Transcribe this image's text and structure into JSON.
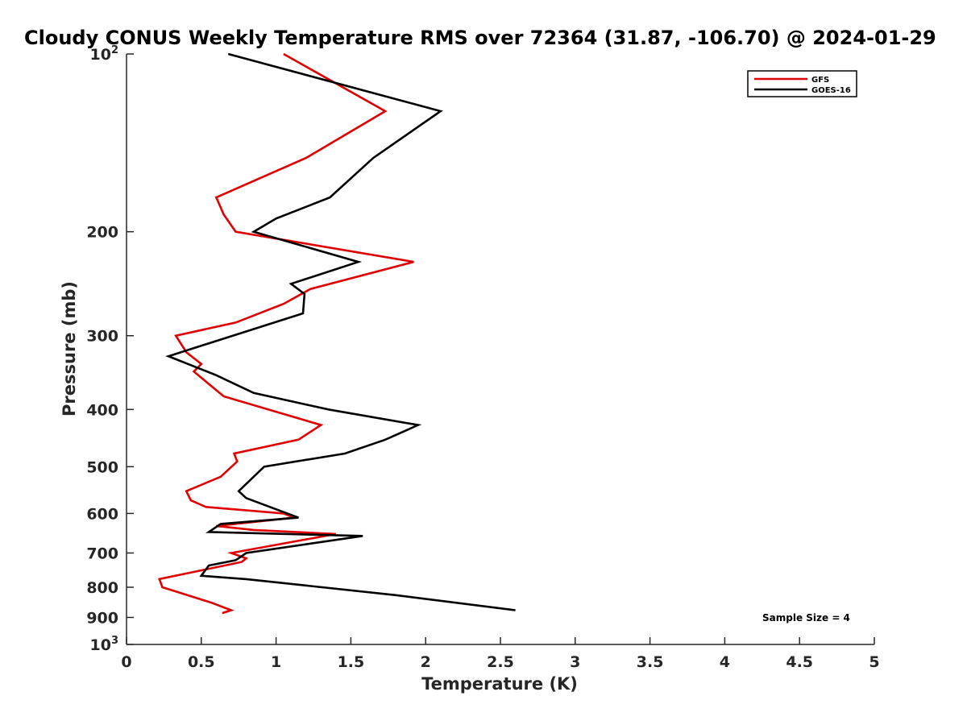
{
  "chart_data": {
    "type": "line",
    "title": "Cloudy CONUS Weekly Temperature RMS over 72364 (31.87, -106.70) @ 2024-01-29",
    "xlabel": "Temperature (K)",
    "ylabel": "Pressure (mb)",
    "xlim": [
      0,
      5
    ],
    "ylim": [
      100,
      1000
    ],
    "y_scale": "log",
    "y_reversed": true,
    "x_ticks": [
      "0",
      "0.5",
      "1",
      "1.5",
      "2",
      "2.5",
      "3",
      "3.5",
      "4",
      "4.5",
      "5"
    ],
    "y_ticks": [
      {
        "value": 100,
        "base": "10",
        "exp": "2"
      },
      {
        "value": 200,
        "label": "200"
      },
      {
        "value": 300,
        "label": "300"
      },
      {
        "value": 400,
        "label": "400"
      },
      {
        "value": 500,
        "label": "500"
      },
      {
        "value": 600,
        "label": "600"
      },
      {
        "value": 700,
        "label": "700"
      },
      {
        "value": 800,
        "label": "800"
      },
      {
        "value": 900,
        "label": "900"
      },
      {
        "value": 1000,
        "base": "10",
        "exp": "3"
      }
    ],
    "legend_position": "top-right",
    "grid": false,
    "annotation": "Sample Size = 4",
    "series": [
      {
        "name": "GFS",
        "color": "#e00000",
        "points": [
          [
            1.05,
            100
          ],
          [
            1.73,
            125
          ],
          [
            1.2,
            150
          ],
          [
            0.6,
            175
          ],
          [
            0.65,
            187
          ],
          [
            0.73,
            200
          ],
          [
            1.92,
            225
          ],
          [
            1.23,
            250
          ],
          [
            1.05,
            265
          ],
          [
            0.73,
            285
          ],
          [
            0.33,
            300
          ],
          [
            0.4,
            320
          ],
          [
            0.5,
            335
          ],
          [
            0.45,
            345
          ],
          [
            0.65,
            380
          ],
          [
            1.3,
            425
          ],
          [
            1.15,
            450
          ],
          [
            0.72,
            475
          ],
          [
            0.74,
            490
          ],
          [
            0.63,
            520
          ],
          [
            0.4,
            550
          ],
          [
            0.43,
            570
          ],
          [
            0.53,
            585
          ],
          [
            1.05,
            600
          ],
          [
            1.12,
            610
          ],
          [
            0.6,
            630
          ],
          [
            0.85,
            640
          ],
          [
            1.4,
            650
          ],
          [
            0.7,
            700
          ],
          [
            0.8,
            715
          ],
          [
            0.77,
            725
          ],
          [
            0.22,
            775
          ],
          [
            0.24,
            800
          ],
          [
            0.57,
            850
          ],
          [
            0.7,
            875
          ],
          [
            0.64,
            885
          ]
        ]
      },
      {
        "name": "GOES-16",
        "color": "#000000",
        "points": [
          [
            0.68,
            100
          ],
          [
            2.1,
            125
          ],
          [
            1.65,
            150
          ],
          [
            1.36,
            175
          ],
          [
            1.0,
            190
          ],
          [
            0.85,
            200
          ],
          [
            1.55,
            225
          ],
          [
            1.1,
            245
          ],
          [
            1.19,
            255
          ],
          [
            1.18,
            275
          ],
          [
            0.28,
            325
          ],
          [
            0.6,
            350
          ],
          [
            0.85,
            375
          ],
          [
            1.35,
            400
          ],
          [
            1.95,
            425
          ],
          [
            1.73,
            450
          ],
          [
            1.46,
            475
          ],
          [
            0.92,
            500
          ],
          [
            0.75,
            550
          ],
          [
            0.8,
            565
          ],
          [
            1.15,
            610
          ],
          [
            0.63,
            625
          ],
          [
            0.55,
            645
          ],
          [
            1.58,
            655
          ],
          [
            0.8,
            700
          ],
          [
            0.73,
            720
          ],
          [
            0.55,
            735
          ],
          [
            0.5,
            765
          ],
          [
            0.8,
            775
          ],
          [
            1.8,
            825
          ],
          [
            2.6,
            875
          ]
        ]
      }
    ]
  }
}
